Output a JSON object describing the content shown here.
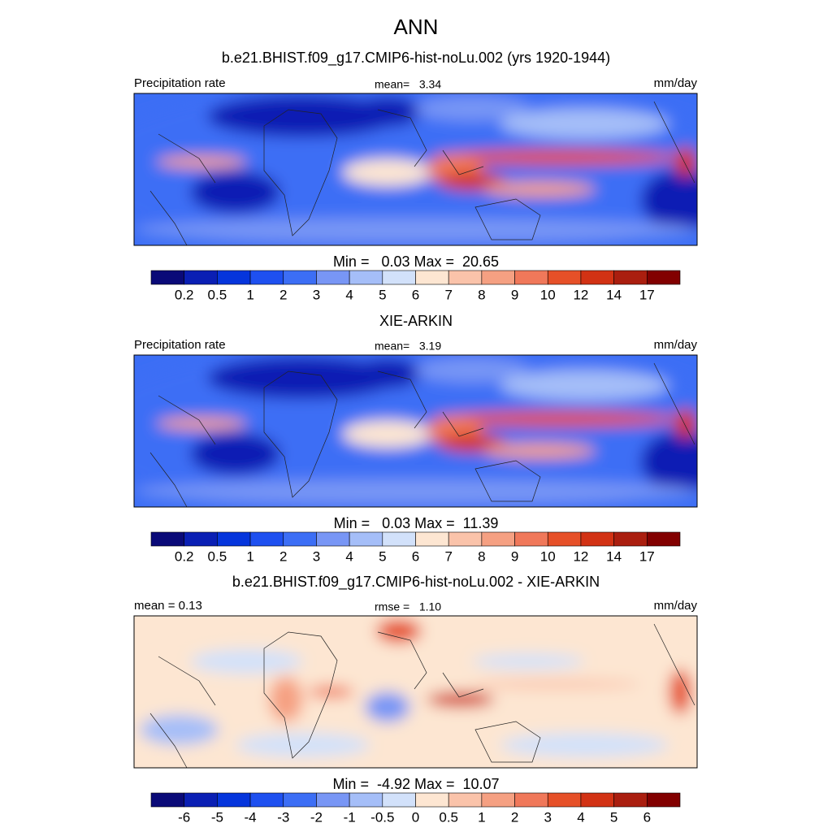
{
  "title": "ANN",
  "panels": [
    {
      "title": "b.e21.BHIST.f09_g17.CMIP6-hist-noLu.002 (yrs 1920-1944)",
      "left_label": "Precipitation rate",
      "center_label": "mean=   3.34",
      "right_label": "mm/day",
      "minmax": "Min =   0.03 Max =  20.65",
      "colorbar": {
        "labels": [
          "0.2",
          "0.5",
          "1",
          "2",
          "3",
          "4",
          "5",
          "6",
          "7",
          "8",
          "9",
          "10",
          "12",
          "14",
          "17"
        ],
        "colors": [
          "#0a0a78",
          "#0a1fb4",
          "#0535dc",
          "#1e50f0",
          "#3c6ef5",
          "#7896f5",
          "#a5bef8",
          "#d2e1fa",
          "#fde6d2",
          "#fac3aa",
          "#f5a082",
          "#f0785a",
          "#e65028",
          "#d23214",
          "#aa1e0f",
          "#820000"
        ]
      }
    },
    {
      "title": "XIE-ARKIN",
      "left_label": "Precipitation rate",
      "center_label": "mean=   3.19",
      "right_label": "mm/day",
      "minmax": "Min =   0.03 Max =  11.39",
      "colorbar": {
        "labels": [
          "0.2",
          "0.5",
          "1",
          "2",
          "3",
          "4",
          "5",
          "6",
          "7",
          "8",
          "9",
          "10",
          "12",
          "14",
          "17"
        ],
        "colors": [
          "#0a0a78",
          "#0a1fb4",
          "#0535dc",
          "#1e50f0",
          "#3c6ef5",
          "#7896f5",
          "#a5bef8",
          "#d2e1fa",
          "#fde6d2",
          "#fac3aa",
          "#f5a082",
          "#f0785a",
          "#e65028",
          "#d23214",
          "#aa1e0f",
          "#820000"
        ]
      }
    },
    {
      "title": "b.e21.BHIST.f09_g17.CMIP6-hist-noLu.002 - XIE-ARKIN",
      "left_label": "mean =   0.13",
      "center_label": "rmse =   1.10",
      "right_label": "mm/day",
      "minmax": "Min =  -4.92 Max =  10.07",
      "colorbar": {
        "labels": [
          "-6",
          "-5",
          "-4",
          "-3",
          "-2",
          "-1",
          "-0.5",
          "0",
          "0.5",
          "1",
          "2",
          "3",
          "4",
          "5",
          "6"
        ],
        "colors": [
          "#0a0a78",
          "#0a1fb4",
          "#0535dc",
          "#1e50f0",
          "#3c6ef5",
          "#7896f5",
          "#a5bef8",
          "#d2e1fa",
          "#fde6d2",
          "#fac3aa",
          "#f5a082",
          "#f0785a",
          "#e65028",
          "#d23214",
          "#aa1e0f",
          "#820000"
        ]
      }
    }
  ]
}
